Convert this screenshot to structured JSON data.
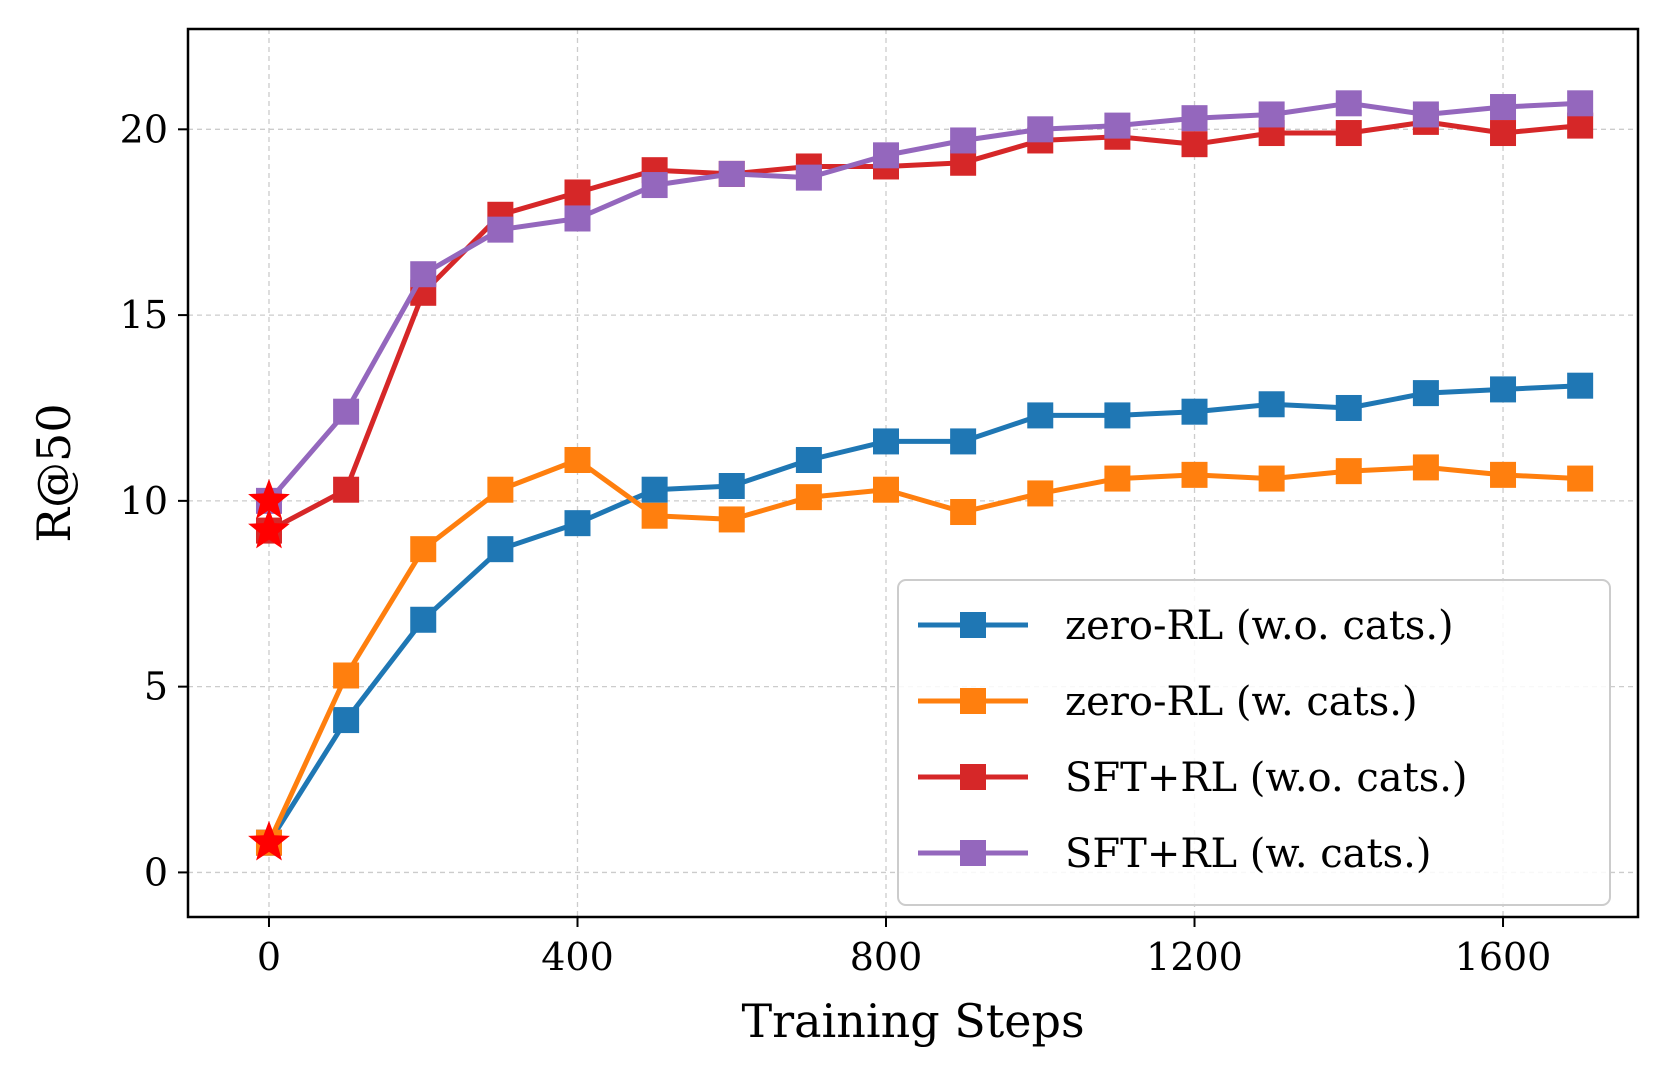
{
  "chart_data": {
    "type": "line",
    "title": "",
    "xlabel": "Training Steps",
    "ylabel": "R@50",
    "xlim": [
      -105,
      1775
    ],
    "ylim": [
      -1.2,
      22.7
    ],
    "xticks": [
      0,
      400,
      800,
      1200,
      1600
    ],
    "yticks": [
      0,
      5,
      10,
      15,
      20
    ],
    "grid": true,
    "legend_position": "lower-right",
    "x": [
      0,
      100,
      200,
      300,
      400,
      500,
      600,
      700,
      800,
      900,
      1000,
      1100,
      1200,
      1300,
      1400,
      1500,
      1600,
      1700
    ],
    "series": [
      {
        "name": "zero-RL (w.o. cats.)",
        "color": "#1f77b4",
        "values": [
          0.8,
          4.1,
          6.8,
          8.7,
          9.4,
          10.3,
          10.4,
          11.1,
          11.6,
          11.6,
          12.3,
          12.3,
          12.4,
          12.6,
          12.5,
          12.9,
          13.0,
          13.1
        ]
      },
      {
        "name": "zero-RL (w. cats.)",
        "color": "#ff7f0e",
        "values": [
          0.8,
          5.3,
          8.7,
          10.3,
          11.1,
          9.6,
          9.5,
          10.1,
          10.3,
          9.7,
          10.2,
          10.6,
          10.7,
          10.6,
          10.8,
          10.9,
          10.7,
          10.6
        ]
      },
      {
        "name": "SFT+RL (w.o. cats.)",
        "color": "#d62728",
        "values": [
          9.2,
          10.3,
          15.6,
          17.7,
          18.3,
          18.9,
          18.8,
          19.0,
          19.0,
          19.1,
          19.7,
          19.8,
          19.6,
          19.9,
          19.9,
          20.2,
          19.9,
          20.1
        ]
      },
      {
        "name": "SFT+RL (w. cats.)",
        "color": "#9467bd",
        "values": [
          10.0,
          12.4,
          16.1,
          17.3,
          17.6,
          18.5,
          18.8,
          18.7,
          19.3,
          19.7,
          20.0,
          20.1,
          20.3,
          20.4,
          20.7,
          20.4,
          20.6,
          20.7
        ]
      }
    ],
    "star_markers": {
      "color": "#ff0000",
      "points": [
        {
          "x": 0,
          "y": 10.0
        },
        {
          "x": 0,
          "y": 9.2
        },
        {
          "x": 0,
          "y": 0.8
        }
      ]
    }
  }
}
